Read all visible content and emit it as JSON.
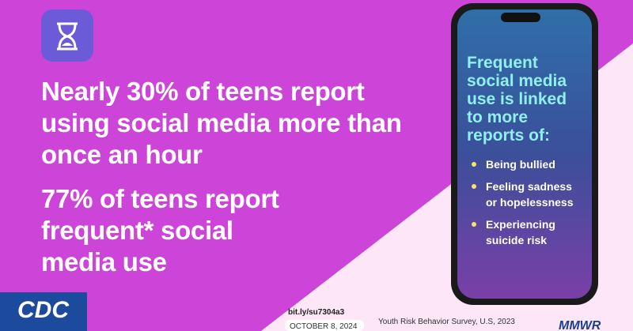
{
  "headline": {
    "line1": "Nearly 30% of teens report using social media more than once an hour",
    "line2": "77% of teens report frequent*  social media use"
  },
  "phone": {
    "heading": "Frequent social media use  is linked to more reports of:",
    "items": [
      "Being bullied",
      "Feeling sadness or hopelessness",
      "Experiencing suicide risk"
    ]
  },
  "footer": {
    "logo": "CDC",
    "link": "bit.ly/su7304a3",
    "date": "OCTOBER 8, 2024",
    "source": "Youth Risk Behavior Survey, U.S, 2023",
    "brand": "MMWR"
  }
}
